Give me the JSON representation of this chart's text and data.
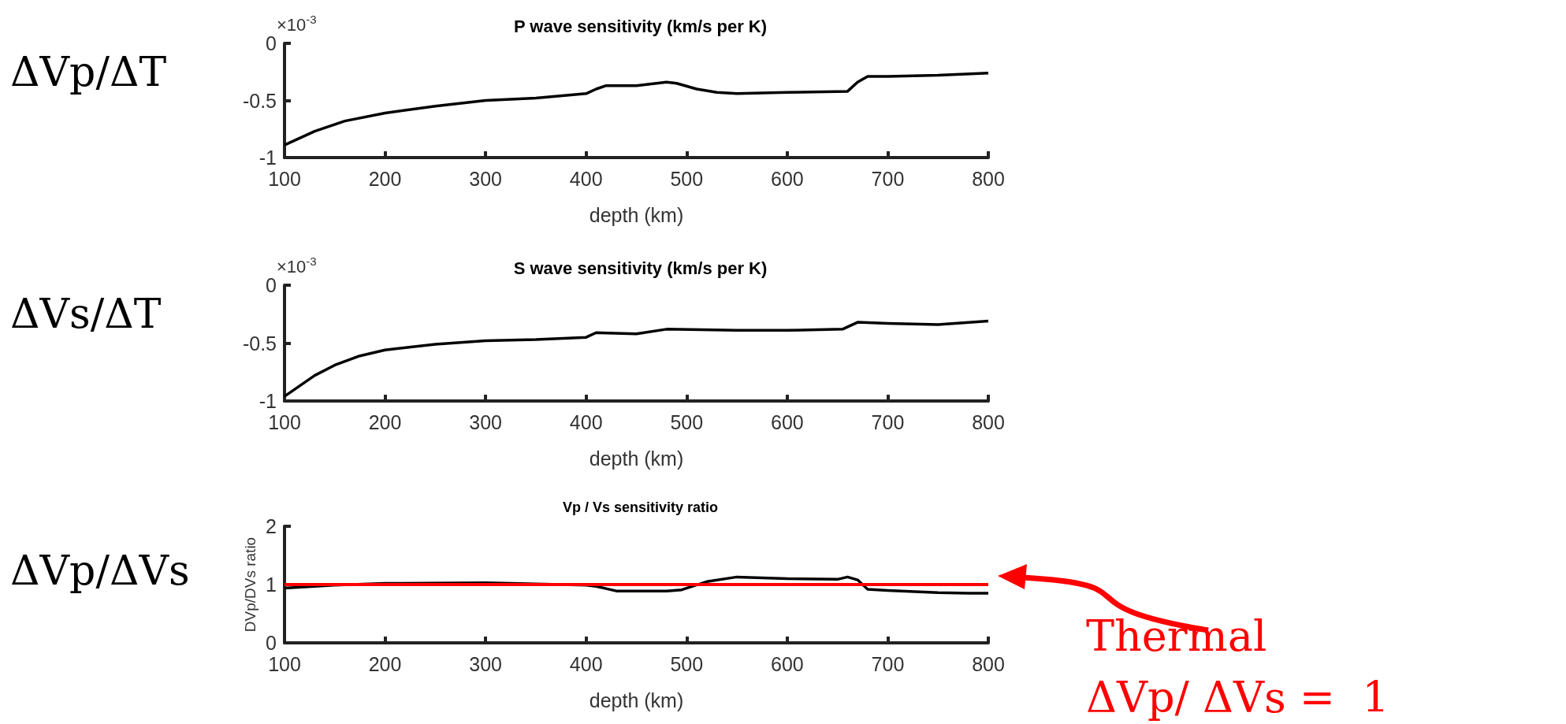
{
  "chart_data": [
    {
      "type": "line",
      "title": "P wave sensitivity (km/s per K)",
      "xlabel": "depth (km)",
      "annotations": [
        "ΔVp/ΔT",
        "×10$^{-3}$"
      ],
      "xlim": [
        100,
        800
      ],
      "xticks": [
        100,
        200,
        300,
        400,
        500,
        600,
        700,
        800
      ],
      "ylim": [
        -1,
        0
      ],
      "yticks": [
        -1,
        -0.5,
        0
      ],
      "grid": false,
      "marker": "none",
      "series": [
        {
          "color": "#000000",
          "x": [
            100,
            130,
            160,
            200,
            250,
            300,
            350,
            400,
            410,
            420,
            450,
            480,
            490,
            510,
            530,
            550,
            600,
            660,
            670,
            680,
            700,
            750,
            800
          ],
          "values": [
            -0.89,
            -0.77,
            -0.68,
            -0.61,
            -0.55,
            -0.5,
            -0.48,
            -0.44,
            -0.4,
            -0.37,
            -0.37,
            -0.34,
            -0.35,
            -0.4,
            -0.43,
            -0.44,
            -0.43,
            -0.42,
            -0.34,
            -0.29,
            -0.29,
            -0.28,
            -0.26
          ]
        }
      ]
    },
    {
      "type": "line",
      "title": "S wave sensitivity (km/s per K)",
      "xlabel": "depth (km)",
      "annotations": [
        "ΔVs/ΔT",
        "×10$^{-3}$"
      ],
      "xlim": [
        100,
        800
      ],
      "xticks": [
        100,
        200,
        300,
        400,
        500,
        600,
        700,
        800
      ],
      "ylim": [
        -1,
        0
      ],
      "yticks": [
        -1,
        -0.5,
        0
      ],
      "grid": false,
      "marker": "none",
      "series": [
        {
          "color": "#000000",
          "x": [
            100,
            130,
            150,
            175,
            200,
            250,
            300,
            350,
            400,
            410,
            450,
            480,
            550,
            600,
            655,
            670,
            700,
            750,
            800
          ],
          "values": [
            -0.96,
            -0.78,
            -0.69,
            -0.61,
            -0.56,
            -0.51,
            -0.48,
            -0.47,
            -0.45,
            -0.41,
            -0.42,
            -0.38,
            -0.39,
            -0.39,
            -0.38,
            -0.32,
            -0.33,
            -0.34,
            -0.31
          ]
        }
      ]
    },
    {
      "type": "line",
      "title": "Vp / Vs sensitivity ratio",
      "xlabel": "depth (km)",
      "ylabel": "DVp/DVs ratio",
      "annotations": [
        "ΔVp/ΔVs"
      ],
      "xlim": [
        100,
        800
      ],
      "xticks": [
        100,
        200,
        300,
        400,
        500,
        600,
        700,
        800
      ],
      "ylim": [
        0,
        2
      ],
      "yticks": [
        0,
        1,
        2
      ],
      "grid": false,
      "marker": "none",
      "series": [
        {
          "color": "#000000",
          "x": [
            100,
            150,
            200,
            300,
            400,
            410,
            430,
            480,
            495,
            520,
            550,
            600,
            650,
            660,
            670,
            680,
            700,
            750,
            780,
            800
          ],
          "values": [
            0.94,
            0.99,
            1.02,
            1.03,
            0.99,
            0.97,
            0.89,
            0.89,
            0.91,
            1.05,
            1.13,
            1.1,
            1.09,
            1.13,
            1.08,
            0.92,
            0.9,
            0.86,
            0.85,
            0.85
          ]
        }
      ],
      "ref_lines": [
        {
          "axis": "y",
          "value": 1,
          "label": "Thermal\nΔVp/ ΔVs =  1",
          "color": "#ff0000"
        }
      ]
    }
  ]
}
